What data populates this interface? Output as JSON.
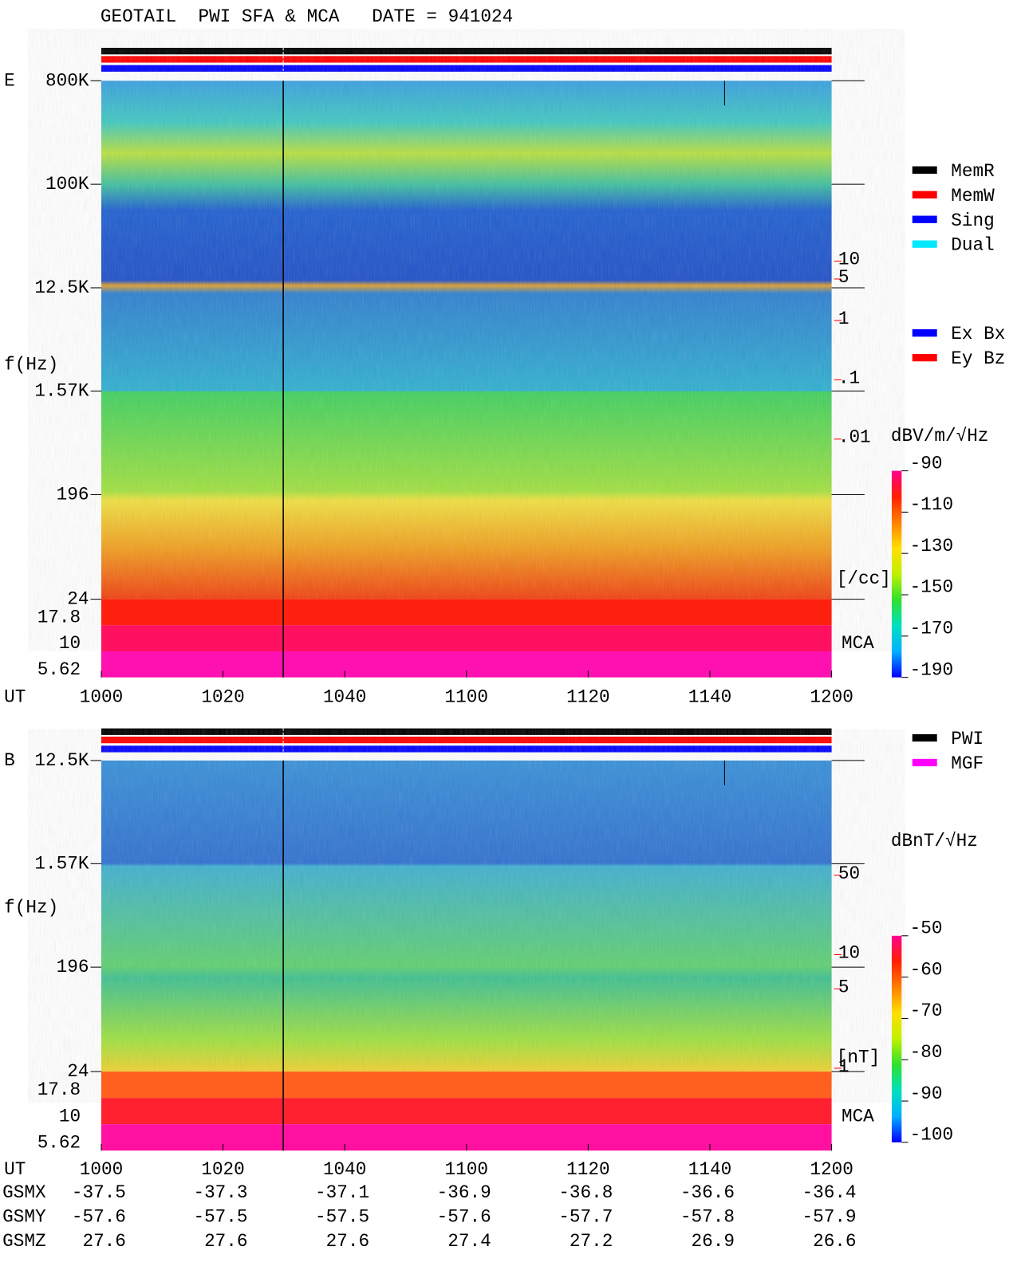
{
  "title": "GEOTAIL  PWI SFA & MCA   DATE = 941024",
  "chart_data": [
    {
      "type": "spectrogram",
      "panel": "E",
      "ylabel": "f(Hz)",
      "xlabel": "UT",
      "x": [
        "1000",
        "1020",
        "1040",
        "1100",
        "1120",
        "1140",
        "1200"
      ],
      "yscale": "log",
      "ylim": [
        24,
        800000
      ],
      "yticks": [
        {
          "value": 800000,
          "label": "800K"
        },
        {
          "value": 100000,
          "label": "100K"
        },
        {
          "value": 12500,
          "label": "12.5K"
        },
        {
          "value": 1570,
          "label": "1.57K"
        },
        196,
        24
      ],
      "mca_label": "MCA",
      "mca_channels": [
        17.8,
        10,
        5.62
      ],
      "y2scale": "log",
      "y2lim": [
        2e-05,
        11000
      ],
      "y2label": "[/cc]",
      "y2color": "#ff0000",
      "y2ticks": [
        10,
        5,
        1,
        {
          "value": 0.1,
          "label": ".1"
        },
        {
          "value": 0.01,
          "label": ".01"
        }
      ],
      "legend": [
        {
          "name": "MemR",
          "color": "#000000"
        },
        {
          "name": "MemW",
          "color": "#ff0000"
        },
        {
          "name": "Sing",
          "color": "#0000ff"
        },
        {
          "name": "Dual",
          "color": "#00e8ff"
        }
      ],
      "legend2": [
        {
          "name": "Ex Bx",
          "color": "#0000ff"
        },
        {
          "name": "Ey Bz",
          "color": "#ff0000"
        }
      ],
      "colorbar": {
        "label": "dBV/m/√Hz",
        "lim": [
          -190,
          -90
        ],
        "ticks": [
          -90,
          -110,
          -130,
          -150,
          -170,
          -190
        ],
        "colors": [
          "#0000ff",
          "#00b0ff",
          "#00e0c0",
          "#30e030",
          "#c0f000",
          "#ffe000",
          "#ff8000",
          "#ff2000",
          "#ff0090"
        ]
      }
    },
    {
      "type": "spectrogram",
      "panel": "B",
      "ylabel": "f(Hz)",
      "xlabel": "UT",
      "x": [
        "1000",
        "1020",
        "1040",
        "1100",
        "1120",
        "1140",
        "1200"
      ],
      "yscale": "log",
      "ylim": [
        24,
        12500
      ],
      "yticks": [
        {
          "value": 12500,
          "label": "12.5K"
        },
        {
          "value": 1570,
          "label": "1.57K"
        },
        196,
        24
      ],
      "mca_label": "MCA",
      "mca_channels": [
        17.8,
        10,
        5.62
      ],
      "y2scale": "log",
      "y2lim": [
        0.935,
        513
      ],
      "y2label": "[nT]",
      "y2color": "#ff0000",
      "y2ticks": [
        50,
        10,
        5,
        1
      ],
      "legend": [
        {
          "name": "PWI",
          "color": "#000000"
        },
        {
          "name": "MGF",
          "color": "#ff00ff"
        }
      ],
      "colorbar": {
        "label": "dBnT/√Hz",
        "lim": [
          -100,
          -50
        ],
        "ticks": [
          -50,
          -60,
          -70,
          -80,
          -90,
          -100
        ],
        "colors": [
          "#0000ff",
          "#00b0ff",
          "#00e0c0",
          "#30e030",
          "#c0f000",
          "#ffe000",
          "#ff8000",
          "#ff2000",
          "#ff0090"
        ]
      }
    }
  ],
  "orbit": {
    "labels": [
      "GSMX",
      "GSMY",
      "GSMZ"
    ],
    "rows": [
      [
        -37.5,
        -37.3,
        -37.1,
        -36.9,
        -36.8,
        -36.6,
        -36.4
      ],
      [
        -57.6,
        -57.5,
        -57.5,
        -57.6,
        -57.7,
        -57.8,
        -57.9
      ],
      [
        27.6,
        27.6,
        27.6,
        27.4,
        27.2,
        26.9,
        26.6
      ]
    ]
  }
}
